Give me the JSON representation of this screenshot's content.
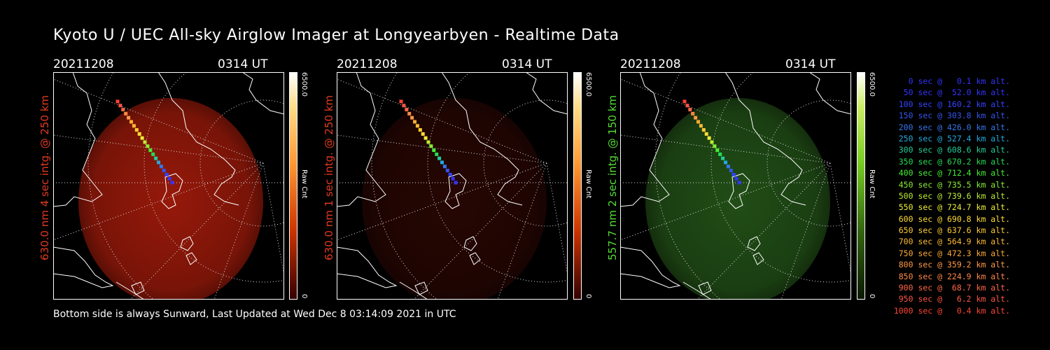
{
  "title": "Kyoto U / UEC All-sky Airglow Imager at Longyearbyen - Realtime Data",
  "footer": "Bottom side is always Sunward, Last Updated at Wed Dec  8 03:14:09 2021 in UTC",
  "colors": {
    "red630": "#e03a1f",
    "green557": "#55dd33",
    "background": "#000000"
  },
  "panels": [
    {
      "date": "20211208",
      "time": "0314 UT",
      "side_label": "630.0 nm 4 sec intg. @ 250 km",
      "label_color": "#e03a1f",
      "colorbar_max": "6500.0",
      "colorbar_min": "0",
      "colorbar_label": "Raw Cnt",
      "emission": "red",
      "brightness": 1.0
    },
    {
      "date": "20211208",
      "time": "0314 UT",
      "side_label": "630.0 nm 1 sec intg. @ 250 km",
      "label_color": "#e03a1f",
      "colorbar_max": "6500.0",
      "colorbar_min": "0",
      "colorbar_label": "Raw Cnt",
      "emission": "red",
      "brightness": 0.25
    },
    {
      "date": "20211208",
      "time": "0314 UT",
      "side_label": "557.7 nm 2 sec intg. @ 150 km",
      "label_color": "#55dd33",
      "colorbar_max": "6500.0",
      "colorbar_min": "0",
      "colorbar_label": "Raw Cnt",
      "emission": "green",
      "brightness": 0.55
    }
  ],
  "legend": [
    {
      "text": "0 sec @   0.1 km alt.",
      "color": "#3333ff"
    },
    {
      "text": "50 sec @  52.0 km alt.",
      "color": "#3333ff"
    },
    {
      "text": "100 sec @ 160.2 km alt.",
      "color": "#3344ff"
    },
    {
      "text": "150 sec @ 303.8 km alt.",
      "color": "#3355ee"
    },
    {
      "text": "200 sec @ 426.0 km alt.",
      "color": "#3377ee"
    },
    {
      "text": "250 sec @ 527.4 km alt.",
      "color": "#22aadd"
    },
    {
      "text": "300 sec @ 608.6 km alt.",
      "color": "#22cc99"
    },
    {
      "text": "350 sec @ 670.2 km alt.",
      "color": "#22dd55"
    },
    {
      "text": "400 sec @ 712.4 km alt.",
      "color": "#44ee33"
    },
    {
      "text": "450 sec @ 735.5 km alt.",
      "color": "#88ee33"
    },
    {
      "text": "500 sec @ 739.6 km alt.",
      "color": "#bbee33"
    },
    {
      "text": "550 sec @ 724.7 km alt.",
      "color": "#eeee33"
    },
    {
      "text": "600 sec @ 690.8 km alt.",
      "color": "#ffdd33"
    },
    {
      "text": "650 sec @ 637.6 km alt.",
      "color": "#ffcc33"
    },
    {
      "text": "700 sec @ 564.9 km alt.",
      "color": "#ffbb33"
    },
    {
      "text": "750 sec @ 472.3 km alt.",
      "color": "#ffaa33"
    },
    {
      "text": "800 sec @ 359.2 km alt.",
      "color": "#ff9944"
    },
    {
      "text": "850 sec @ 224.9 km alt.",
      "color": "#ff8844"
    },
    {
      "text": "900 sec @  68.7 km alt.",
      "color": "#ff6644"
    },
    {
      "text": "950 sec @   6.2 km alt.",
      "color": "#ff5544"
    },
    {
      "text": "1000 sec @   0.4 km alt.",
      "color": "#ff4433"
    }
  ]
}
